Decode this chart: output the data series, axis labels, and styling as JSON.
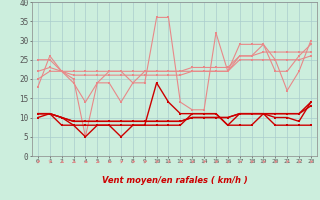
{
  "xlabel": "Vent moyen/en rafales ( km/h )",
  "bg_color": "#cceedd",
  "grid_color": "#aacccc",
  "x_hours": [
    0,
    1,
    2,
    3,
    4,
    5,
    6,
    7,
    8,
    9,
    10,
    11,
    12,
    13,
    14,
    15,
    16,
    17,
    18,
    19,
    20,
    21,
    22,
    23
  ],
  "ylim": [
    -2,
    40
  ],
  "yticks": [
    0,
    5,
    10,
    15,
    20,
    25,
    30,
    35,
    40
  ],
  "line_gust1": [
    18,
    26,
    22,
    20,
    5,
    19,
    19,
    14,
    19,
    19,
    36,
    36,
    14,
    12,
    12,
    32,
    22,
    29,
    29,
    29,
    25,
    17,
    22,
    30
  ],
  "line_gust2": [
    25,
    25,
    22,
    19,
    14,
    19,
    22,
    22,
    19,
    22,
    22,
    22,
    22,
    22,
    22,
    22,
    22,
    26,
    26,
    29,
    22,
    22,
    26,
    29
  ],
  "line_gust3": [
    22,
    23,
    22,
    22,
    22,
    22,
    22,
    22,
    22,
    22,
    22,
    22,
    22,
    23,
    23,
    23,
    23,
    26,
    26,
    27,
    27,
    27,
    27,
    27
  ],
  "line_gust4": [
    20,
    22,
    22,
    21,
    21,
    21,
    21,
    21,
    21,
    21,
    21,
    21,
    21,
    22,
    22,
    22,
    22,
    25,
    25,
    25,
    25,
    25,
    25,
    26
  ],
  "line_mean1": [
    11,
    11,
    8,
    8,
    5,
    8,
    8,
    5,
    8,
    8,
    19,
    14,
    11,
    11,
    11,
    11,
    8,
    11,
    11,
    11,
    10,
    10,
    9,
    14
  ],
  "line_mean2": [
    11,
    11,
    10,
    8,
    8,
    8,
    8,
    8,
    8,
    8,
    8,
    8,
    8,
    11,
    11,
    11,
    8,
    8,
    8,
    11,
    8,
    8,
    8,
    8
  ],
  "line_mean3": [
    11,
    11,
    10,
    9,
    9,
    9,
    9,
    9,
    9,
    9,
    9,
    9,
    9,
    10,
    10,
    10,
    10,
    11,
    11,
    11,
    11,
    11,
    11,
    13
  ],
  "line_mean4": [
    10,
    11,
    10,
    9,
    9,
    9,
    9,
    9,
    9,
    9,
    9,
    9,
    9,
    10,
    10,
    10,
    10,
    11,
    11,
    11,
    11,
    11,
    11,
    14
  ],
  "color_light": "#e88888",
  "color_dark": "#cc0000",
  "marker_size": 1.8,
  "lw_light": 0.8,
  "lw_dark": 1.0,
  "arrow_angles": [
    45,
    45,
    315,
    315,
    315,
    315,
    315,
    45,
    45,
    45,
    45,
    45,
    315,
    45,
    45,
    45,
    45,
    45,
    45,
    45,
    45,
    45,
    45,
    45
  ]
}
